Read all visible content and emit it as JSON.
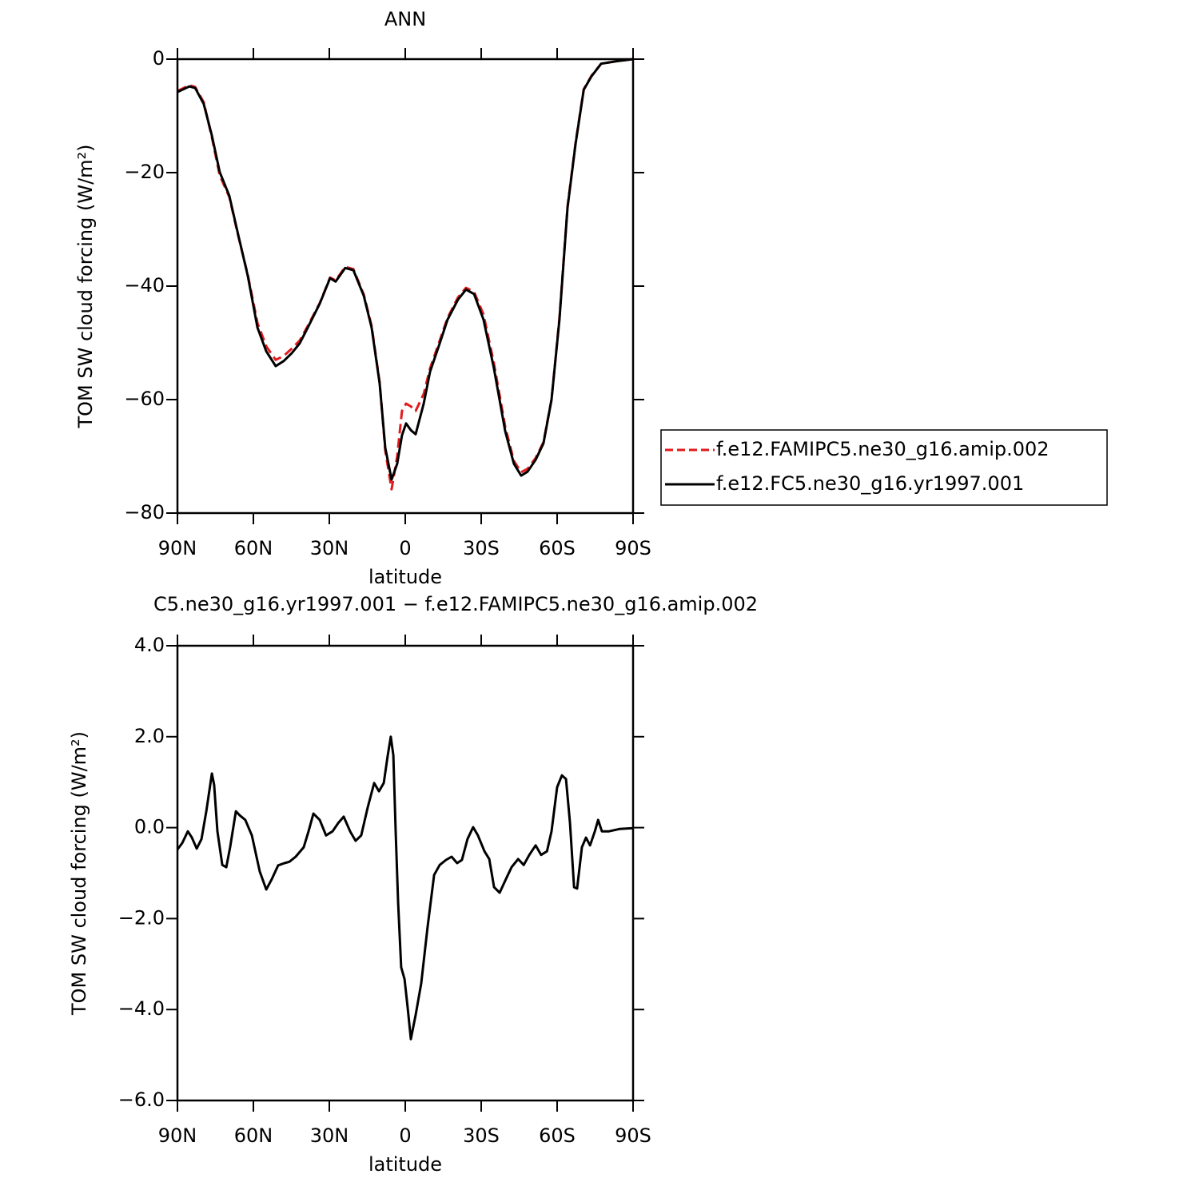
{
  "chart_data": [
    {
      "type": "line",
      "title": "ANN",
      "x_label": "latitude",
      "y_label": "TOM SW cloud forcing (W/m²)",
      "x": [
        90,
        85.3,
        83,
        79.6,
        76.4,
        73.3,
        69.5,
        66.3,
        62.2,
        58.4,
        54.9,
        51.2,
        48,
        44.8,
        41.7,
        38.5,
        33.8,
        29.7,
        27.5,
        23.7,
        20.5,
        16.4,
        13.3,
        10.1,
        7.9,
        5.4,
        3.2,
        1.3,
        -0.3,
        -2.2,
        -4.1,
        -7.3,
        -9.8,
        -13.6,
        -16.7,
        -20.8,
        -24,
        -27.2,
        -30.9,
        -35,
        -39.5,
        -42.9,
        -45.8,
        -48.3,
        -51.5,
        -54.6,
        -57.8,
        -60.9,
        -64.1,
        -67.3,
        -70.5,
        -73.6,
        -77.4,
        -83.1,
        -90
      ],
      "xlim": [
        90,
        -90
      ],
      "xticks": [
        {
          "value": 90,
          "label": "90N"
        },
        {
          "value": 60,
          "label": "60N"
        },
        {
          "value": 30,
          "label": "30N"
        },
        0,
        {
          "value": -30,
          "label": "30S"
        },
        {
          "value": -60,
          "label": "60S"
        },
        {
          "value": -90,
          "label": "90S"
        }
      ],
      "ylim": [
        -80,
        0
      ],
      "yticks": [
        {
          "value": -80,
          "label": "−80"
        },
        {
          "value": -60,
          "label": "−60"
        },
        {
          "value": -40,
          "label": "−40"
        },
        {
          "value": -20,
          "label": "−20"
        },
        0
      ],
      "legend": "right",
      "series": [
        {
          "name": "f.e12.FAMIPC5.ne30_g16.amip.002",
          "color": "#e41a1c",
          "dashed": true,
          "values": [
            -5.6,
            -4.6,
            -4.9,
            -7.6,
            -13.8,
            -20.5,
            -24.3,
            -30.6,
            -38,
            -46.5,
            -50.6,
            -53,
            -52.3,
            -51,
            -49.6,
            -47,
            -43,
            -38.5,
            -39,
            -36.6,
            -37,
            -41.5,
            -47,
            -57,
            -69,
            -75.8,
            -70,
            -62,
            -60.7,
            -61.2,
            -62,
            -59,
            -54.5,
            -49.6,
            -45.6,
            -42,
            -40.3,
            -41,
            -45,
            -53.5,
            -64.8,
            -70.8,
            -72.8,
            -72.2,
            -70.3,
            -67.5,
            -60,
            -45.6,
            -26,
            -14.7,
            -5.3,
            -2.9,
            -0.8,
            -0.4,
            0
          ]
        },
        {
          "name": "f.e12.FC5.ne30_g16.yr1997.001",
          "color": "#000000",
          "dashed": false,
          "values": [
            -5.8,
            -4.8,
            -5.1,
            -7.9,
            -13.5,
            -19.9,
            -24.1,
            -30.4,
            -38.2,
            -47.3,
            -51.5,
            -54.1,
            -53.2,
            -51.8,
            -50.1,
            -47.3,
            -43.1,
            -38.6,
            -39.2,
            -36.8,
            -37.2,
            -41.7,
            -47.3,
            -57.2,
            -68.5,
            -74.1,
            -71.3,
            -66.3,
            -64.2,
            -65.4,
            -66.1,
            -60.7,
            -55.1,
            -50.1,
            -45.9,
            -42.4,
            -40.6,
            -41.4,
            -45.9,
            -54.4,
            -65.6,
            -71.3,
            -73.4,
            -72.7,
            -70.6,
            -67.7,
            -60,
            -45.9,
            -26.2,
            -14.9,
            -5.4,
            -3,
            -0.8,
            -0.4,
            0
          ]
        }
      ]
    },
    {
      "type": "line",
      "title": "C5.ne30_g16.yr1997.001 − f.e12.FAMIPC5.ne30_g16.amip.002",
      "x_label": "latitude",
      "y_label": "TOM SW cloud forcing (W/m²)",
      "x": [
        90,
        88.1,
        85.9,
        84.3,
        82.4,
        80.5,
        78.6,
        76.4,
        75.5,
        74.2,
        72.3,
        70.7,
        69.2,
        66.9,
        65.4,
        63.2,
        60.6,
        57.5,
        54.9,
        52.7,
        50.2,
        47.7,
        45.8,
        43.3,
        40.1,
        38.2,
        36.3,
        33.8,
        31.3,
        28.7,
        26.5,
        24.3,
        21.8,
        19.6,
        17.4,
        14.8,
        12.3,
        10.4,
        8.5,
        6.9,
        5.7,
        4.7,
        3.8,
        2.8,
        1.6,
        0.3,
        -0.9,
        -2.2,
        -4.1,
        -6.3,
        -8.8,
        -11.4,
        -13.6,
        -16.1,
        -18.3,
        -20.5,
        -22.4,
        -24.6,
        -26.8,
        -28.7,
        -31.3,
        -33.2,
        -35.1,
        -37.3,
        -39.8,
        -42,
        -44.6,
        -46.8,
        -49,
        -51.5,
        -53.7,
        -56,
        -57.8,
        -60,
        -61.9,
        -63.5,
        -65.1,
        -66.7,
        -67.9,
        -69.8,
        -71.4,
        -73,
        -74.9,
        -76.2,
        -77.7,
        -80.5,
        -84.6,
        -90
      ],
      "xlim": [
        90,
        -90
      ],
      "xticks": [
        {
          "value": 90,
          "label": "90N"
        },
        {
          "value": 60,
          "label": "60N"
        },
        {
          "value": 30,
          "label": "30N"
        },
        0,
        {
          "value": -30,
          "label": "30S"
        },
        {
          "value": -60,
          "label": "60S"
        },
        {
          "value": -90,
          "label": "90S"
        }
      ],
      "ylim": [
        -6,
        4
      ],
      "yticks": [
        {
          "value": -6,
          "label": "−6.0"
        },
        {
          "value": -4,
          "label": "−4.0"
        },
        {
          "value": -2,
          "label": "−2.0"
        },
        {
          "value": 0,
          "label": "0.0"
        },
        {
          "value": 2,
          "label": "2.0"
        },
        {
          "value": 4,
          "label": "4.0"
        }
      ],
      "series": [
        {
          "color": "#000000",
          "dashed": false,
          "values": [
            -0.48,
            -0.34,
            -0.08,
            -0.22,
            -0.46,
            -0.25,
            0.36,
            1.19,
            0.94,
            -0.08,
            -0.82,
            -0.87,
            -0.43,
            0.36,
            0.27,
            0.17,
            -0.17,
            -0.96,
            -1.36,
            -1.13,
            -0.83,
            -0.78,
            -0.75,
            -0.64,
            -0.43,
            -0.08,
            0.31,
            0.17,
            -0.17,
            -0.08,
            0.1,
            0.24,
            -0.08,
            -0.29,
            -0.17,
            0.45,
            0.98,
            0.8,
            0.98,
            1.59,
            2.0,
            1.59,
            -0.08,
            -1.66,
            -3.07,
            -3.33,
            -3.94,
            -4.65,
            -4.12,
            -3.42,
            -2.19,
            -1.04,
            -0.82,
            -0.71,
            -0.64,
            -0.78,
            -0.71,
            -0.25,
            0.01,
            -0.17,
            -0.52,
            -0.69,
            -1.31,
            -1.43,
            -1.13,
            -0.87,
            -0.69,
            -0.82,
            -0.6,
            -0.39,
            -0.6,
            -0.52,
            -0.08,
            0.89,
            1.15,
            1.07,
            0.1,
            -1.31,
            -1.34,
            -0.43,
            -0.22,
            -0.39,
            -0.08,
            0.17,
            -0.08,
            -0.08,
            -0.03,
            -0.01
          ]
        }
      ]
    }
  ]
}
